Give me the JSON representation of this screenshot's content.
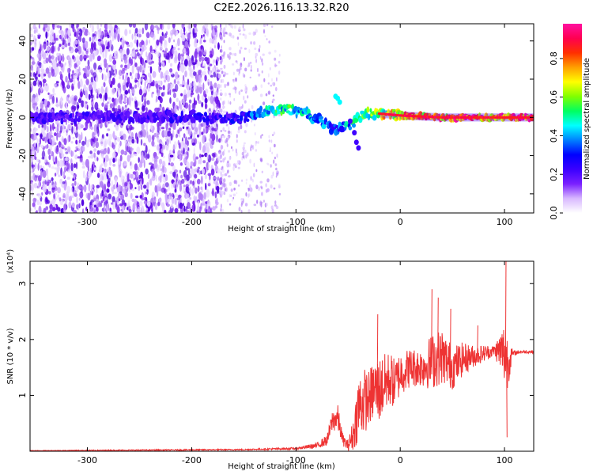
{
  "title": "C2E2.2026.116.13.32.R20",
  "colors": {
    "snr_line": "#ee3333",
    "spectrogram_low": "#b48cf0",
    "spectrogram_mid": "#5a10e8"
  },
  "chart_data": [
    {
      "type": "heatmap",
      "xlabel": "Height of straight line (km)",
      "ylabel": "Frequency (Hz)",
      "xlim": [
        -355,
        128
      ],
      "ylim": [
        -50,
        49
      ],
      "x_ticks": [
        -300,
        -200,
        -100,
        0,
        100
      ],
      "y_ticks": [
        -40,
        -20,
        0,
        20,
        40
      ],
      "colorbar": {
        "label": "Normalized spectral amplitude",
        "range": [
          0,
          0.98
        ],
        "ticks": [
          "0.0",
          "0.2",
          "0.4",
          "0.6",
          "0.8"
        ],
        "tick_values": [
          0,
          0.2,
          0.4,
          0.6,
          0.8
        ],
        "colormap": [
          "#ffffff",
          "#d8b8ff",
          "#7a20ff",
          "#3a00ff",
          "#0000ff",
          "#0080ff",
          "#00ffff",
          "#00ff60",
          "#80ff00",
          "#ffff00",
          "#ffa000",
          "#ff3000",
          "#ff0050",
          "#ff10a0"
        ]
      },
      "ridge": {
        "x": [
          -355,
          -300,
          -250,
          -200,
          -180,
          -150,
          -130,
          -110,
          -90,
          -75,
          -65,
          -55,
          -45,
          -35,
          -20,
          0,
          40,
          80,
          128
        ],
        "freq": [
          0,
          0,
          0,
          1,
          -1,
          0,
          3,
          4,
          2,
          -2,
          -6,
          -5,
          -3,
          2,
          2,
          1,
          0,
          0,
          0
        ],
        "amplitude": [
          0.22,
          0.22,
          0.22,
          0.25,
          0.25,
          0.28,
          0.45,
          0.55,
          0.45,
          0.4,
          0.35,
          0.4,
          0.5,
          0.55,
          0.7,
          0.82,
          0.85,
          0.9,
          0.95
        ]
      },
      "noise_extent_x": [
        -355,
        -172
      ],
      "sparse_noise_extent_x": [
        -172,
        -115
      ]
    },
    {
      "type": "line",
      "xlabel": "Height of straight line (km)",
      "ylabel": "SNR (10 * v/v)",
      "y_scale_label": "(x10⁴)",
      "xlim": [
        -355,
        128
      ],
      "ylim": [
        0,
        3.4
      ],
      "x_ticks": [
        -300,
        -200,
        -100,
        0,
        100
      ],
      "y_ticks": [
        1,
        2,
        3
      ],
      "series": [
        {
          "x": [
            -355,
            -250,
            -150,
            -100,
            -80,
            -70,
            -65,
            -60,
            -55,
            -50,
            -45,
            -40,
            -35,
            -30,
            -25,
            -20,
            -15,
            -10,
            -5,
            0,
            10,
            20,
            30,
            40,
            50,
            60,
            70,
            80,
            90,
            95,
            100,
            103,
            108,
            115,
            128
          ],
          "base": [
            0.01,
            0.02,
            0.03,
            0.05,
            0.1,
            0.2,
            0.55,
            0.6,
            0.2,
            0.1,
            0.3,
            0.8,
            0.9,
            0.95,
            1.1,
            1.1,
            1.2,
            1.3,
            1.2,
            1.4,
            1.5,
            1.5,
            1.6,
            1.7,
            1.5,
            1.65,
            1.7,
            1.75,
            1.8,
            1.8,
            1.75,
            1.6,
            1.75,
            1.78,
            1.78
          ],
          "noise": [
            0.005,
            0.01,
            0.01,
            0.02,
            0.05,
            0.1,
            0.2,
            0.25,
            0.1,
            0.1,
            0.3,
            0.6,
            0.6,
            0.5,
            0.55,
            0.6,
            0.55,
            0.5,
            0.45,
            0.4,
            0.35,
            0.35,
            0.5,
            0.5,
            0.4,
            0.3,
            0.2,
            0.15,
            0.1,
            0.3,
            0.6,
            0.5,
            0.05,
            0.03,
            0.03
          ],
          "spikes": [
            {
              "x": -22,
              "y": 2.45
            },
            {
              "x": 30,
              "y": 2.9
            },
            {
              "x": 36,
              "y": 2.75
            },
            {
              "x": 48,
              "y": 2.55
            },
            {
              "x": 74,
              "y": 2.25
            },
            {
              "x": 101,
              "y": 3.4
            },
            {
              "x": 102,
              "y": 0.25
            }
          ]
        }
      ]
    }
  ]
}
